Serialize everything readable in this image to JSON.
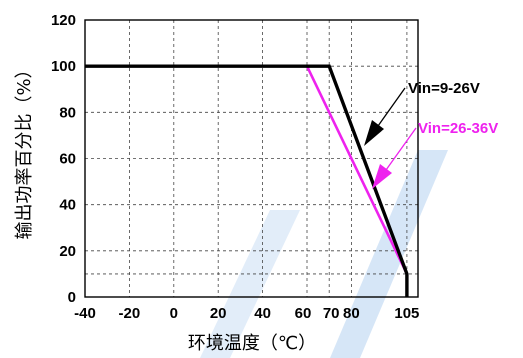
{
  "chart_data": {
    "type": "line",
    "xlabel": "环境温度（℃）",
    "ylabel": "输出功率百分比（%）",
    "x_ticks": [
      "-40",
      "-20",
      "0",
      "20",
      "40",
      "60",
      "70",
      "80",
      "105"
    ],
    "y_ticks": [
      "0",
      "20",
      "40",
      "60",
      "80",
      "100",
      "120"
    ],
    "xlim": [
      -40,
      110
    ],
    "ylim": [
      0,
      120
    ],
    "grid": true,
    "grid_style": "dashed",
    "series": [
      {
        "name": "Vin=9-26V",
        "color": "#000000",
        "x": [
          -40,
          70,
          105,
          105
        ],
        "y": [
          100,
          100,
          10,
          0
        ]
      },
      {
        "name": "Vin=26-36V",
        "color": "#ee22ee",
        "x": [
          60,
          105
        ],
        "y": [
          100,
          10
        ]
      }
    ],
    "annotations": [
      {
        "text": "Vin=9-26V",
        "color": "#000000"
      },
      {
        "text": "Vin=26-36V",
        "color": "#ee22ee"
      }
    ],
    "watermark_color": "#c5dcf3"
  }
}
